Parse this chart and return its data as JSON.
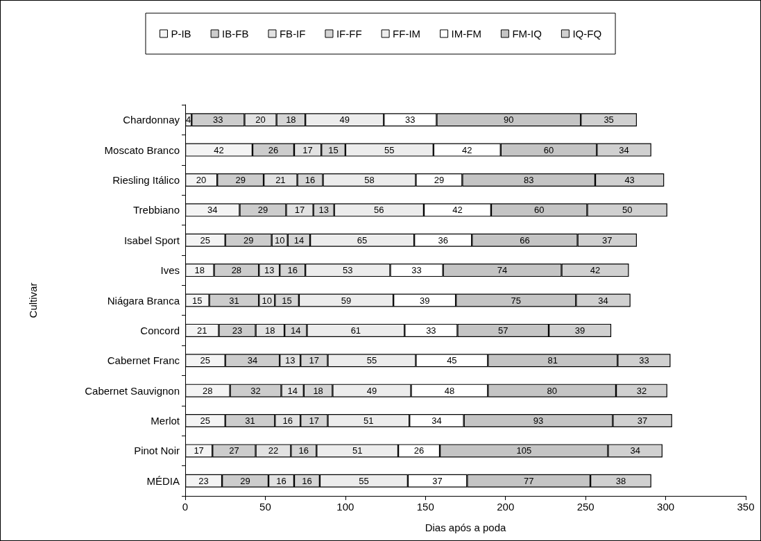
{
  "chart_data": {
    "type": "bar",
    "orientation": "horizontal",
    "stacked": true,
    "data_labels": true,
    "legend": "top",
    "grid": false,
    "xlabel": "Dias após a poda",
    "ylabel": "Cultivar",
    "xlim": [
      0,
      350
    ],
    "xticks": [
      0,
      50,
      100,
      150,
      200,
      250,
      300,
      350
    ],
    "categories": [
      "Chardonnay",
      "Moscato Branco",
      "Riesling Itálico",
      "Trebbiano",
      "Isabel Sport",
      "Ives",
      "Niágara Branca",
      "Concord",
      "Cabernet Franc",
      "Cabernet Sauvignon",
      "Merlot",
      "Pinot Noir",
      "MÉDIA"
    ],
    "series": [
      {
        "name": "P-IB",
        "color": "#f4f4f4",
        "values": [
          4,
          42,
          20,
          34,
          25,
          18,
          15,
          21,
          25,
          28,
          25,
          17,
          23
        ]
      },
      {
        "name": "IB-FB",
        "color": "#cccccc",
        "values": [
          33,
          26,
          29,
          29,
          29,
          28,
          31,
          23,
          34,
          32,
          31,
          27,
          29
        ]
      },
      {
        "name": "FB-IF",
        "color": "#e2e2e2",
        "values": [
          20,
          17,
          21,
          17,
          10,
          13,
          10,
          18,
          13,
          14,
          16,
          22,
          16
        ]
      },
      {
        "name": "IF-FF",
        "color": "#d4d4d4",
        "values": [
          18,
          15,
          16,
          13,
          14,
          16,
          15,
          14,
          17,
          18,
          17,
          16,
          16
        ]
      },
      {
        "name": "FF-IM",
        "color": "#ececec",
        "values": [
          49,
          55,
          58,
          56,
          65,
          53,
          59,
          61,
          55,
          49,
          51,
          51,
          55
        ]
      },
      {
        "name": "IM-FM",
        "color": "#ffffff",
        "values": [
          33,
          42,
          29,
          42,
          36,
          33,
          39,
          33,
          45,
          48,
          34,
          26,
          37
        ]
      },
      {
        "name": "FM-IQ",
        "color": "#c4c4c4",
        "values": [
          90,
          60,
          83,
          60,
          66,
          74,
          75,
          57,
          81,
          80,
          93,
          105,
          77
        ]
      },
      {
        "name": "IQ-FQ",
        "color": "#d0d0d0",
        "values": [
          35,
          34,
          43,
          50,
          37,
          42,
          34,
          39,
          33,
          32,
          37,
          34,
          38
        ]
      }
    ]
  }
}
